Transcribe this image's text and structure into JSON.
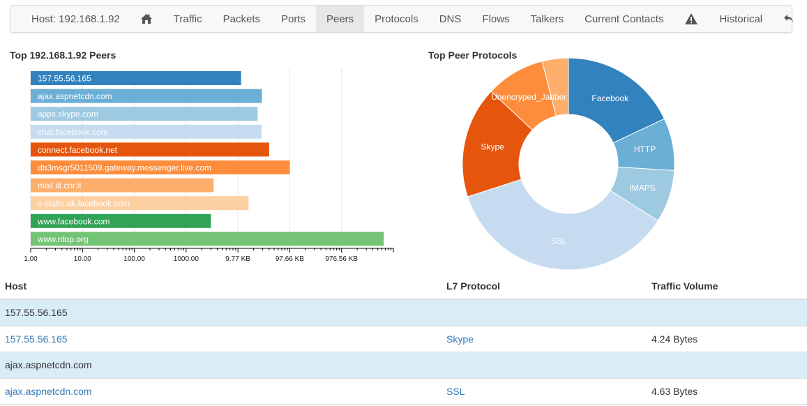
{
  "nav": {
    "host_label": "Host: 192.168.1.92",
    "items": [
      {
        "label": "Traffic"
      },
      {
        "label": "Packets"
      },
      {
        "label": "Ports"
      },
      {
        "label": "Peers",
        "active": true
      },
      {
        "label": "Protocols"
      },
      {
        "label": "DNS"
      },
      {
        "label": "Flows"
      },
      {
        "label": "Talkers"
      },
      {
        "label": "Current Contacts"
      }
    ],
    "historical_label": "Historical",
    "icons": [
      "home-icon",
      "warning-icon",
      "reply-icon"
    ]
  },
  "peers_panel": {
    "title": "Top 192.168.1.92 Peers"
  },
  "protocols_panel": {
    "title": "Top Peer Protocols"
  },
  "chart_data": [
    {
      "type": "bar",
      "orientation": "horizontal",
      "xscale": "log",
      "categories": [
        "157.55.56.165",
        "ajax.aspnetcdn.com",
        "apps.skype.com",
        "chat.facebook.com",
        "connect.facebook.net",
        "db3msgr5011509.gateway.messenger.live.com",
        "mail.iit.cnr.it",
        "s-static.ak.facebook.com",
        "www.facebook.com",
        "www.ntop.org"
      ],
      "values": [
        11500,
        29000,
        24000,
        28500,
        40000,
        100000,
        3400,
        16000,
        3000,
        6500000
      ],
      "colors": [
        "#3182bd",
        "#6baed6",
        "#9ecae1",
        "#c6dbef",
        "#e6550d",
        "#fd8d3c",
        "#fdae6b",
        "#fdd0a2",
        "#31a354",
        "#74c476"
      ],
      "x_tick_labels": [
        "1.00",
        "10.00",
        "100.00",
        "1000.00",
        "9.77 KB",
        "97.66 KB",
        "976.56 KB"
      ],
      "x_ticks": [
        1,
        10,
        100,
        1000,
        10000,
        100000,
        1000000
      ],
      "xlim": [
        1,
        10000000
      ],
      "grid": "vertical"
    },
    {
      "type": "pie",
      "style": "donut",
      "labels": [
        "Facebook",
        "HTTP",
        "IMAPS",
        "SSL",
        "Skype",
        "Unencryped_Jabber",
        ""
      ],
      "values": [
        18,
        8,
        8,
        36,
        17,
        9,
        4
      ],
      "colors": [
        "#3182bd",
        "#6baed6",
        "#9ecae1",
        "#c6dbef",
        "#e6550d",
        "#fd8d3c",
        "#fdae6b"
      ]
    }
  ],
  "table": {
    "headers": {
      "host": "Host",
      "protocol": "L7 Protocol",
      "traffic": "Traffic Volume"
    },
    "rows": [
      {
        "type": "group",
        "host": "157.55.56.165"
      },
      {
        "type": "data",
        "host": "157.55.56.165",
        "protocol": "Skype",
        "traffic": "4.24 Bytes"
      },
      {
        "type": "group",
        "host": "ajax.aspnetcdn.com"
      },
      {
        "type": "data",
        "host": "ajax.aspnetcdn.com",
        "protocol": "SSL",
        "traffic": "4.63 Bytes"
      }
    ]
  }
}
